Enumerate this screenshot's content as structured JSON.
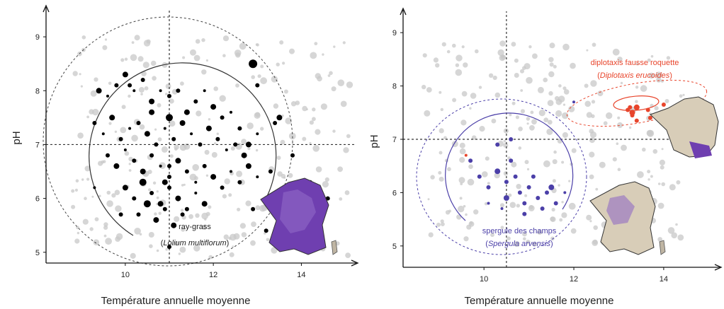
{
  "chart_data": [
    {
      "type": "scatter",
      "xlabel": "Température annuelle moyenne",
      "ylabel": "pH",
      "xlim": [
        8.2,
        15.2
      ],
      "ylim": [
        4.8,
        9.5
      ],
      "xticks": [
        "10",
        "12",
        "14"
      ],
      "yticks": [
        "5",
        "6",
        "7",
        "8",
        "9"
      ],
      "reference_lines": {
        "x": 11,
        "y": 7
      },
      "background_points": {
        "color": "#c8c8c8",
        "x_range": [
          8.8,
          15.2
        ],
        "y_range": [
          4.9,
          9.0
        ]
      },
      "series": [
        {
          "label_common": "ray-grass",
          "label_open": "(",
          "label_latin": "Lolium multiflorum",
          "label_close": ")",
          "color": "#000000",
          "points": [
            [
              9.4,
              8.0
            ],
            [
              9.6,
              7.9
            ],
            [
              9.8,
              8.1
            ],
            [
              10.0,
              8.3
            ],
            [
              10.2,
              8.0
            ],
            [
              10.4,
              8.2
            ],
            [
              10.6,
              7.8
            ],
            [
              10.8,
              8.0
            ],
            [
              11.0,
              7.9
            ],
            [
              11.2,
              8.0
            ],
            [
              11.4,
              7.6
            ],
            [
              11.6,
              7.8
            ],
            [
              11.8,
              8.0
            ],
            [
              12.0,
              7.7
            ],
            [
              12.2,
              7.5
            ],
            [
              12.4,
              7.6
            ],
            [
              12.6,
              7.3
            ],
            [
              12.8,
              7.0
            ],
            [
              13.0,
              8.1
            ],
            [
              12.9,
              8.5
            ],
            [
              9.3,
              7.4
            ],
            [
              9.5,
              7.2
            ],
            [
              9.7,
              7.5
            ],
            [
              9.9,
              7.1
            ],
            [
              10.1,
              7.3
            ],
            [
              10.3,
              7.4
            ],
            [
              10.5,
              7.2
            ],
            [
              10.7,
              7.0
            ],
            [
              10.9,
              7.3
            ],
            [
              11.1,
              7.1
            ],
            [
              11.3,
              7.4
            ],
            [
              11.5,
              7.2
            ],
            [
              11.7,
              7.0
            ],
            [
              11.9,
              7.3
            ],
            [
              12.1,
              7.1
            ],
            [
              12.3,
              6.9
            ],
            [
              12.5,
              7.0
            ],
            [
              12.7,
              6.8
            ],
            [
              13.0,
              7.2
            ],
            [
              13.4,
              7.4
            ],
            [
              9.6,
              6.8
            ],
            [
              9.8,
              6.6
            ],
            [
              10.0,
              6.9
            ],
            [
              10.2,
              6.7
            ],
            [
              10.4,
              6.5
            ],
            [
              10.6,
              6.8
            ],
            [
              10.8,
              6.6
            ],
            [
              11.0,
              6.4
            ],
            [
              11.2,
              6.7
            ],
            [
              11.4,
              6.5
            ],
            [
              11.6,
              6.3
            ],
            [
              11.8,
              6.6
            ],
            [
              12.0,
              6.4
            ],
            [
              12.2,
              6.2
            ],
            [
              12.4,
              6.5
            ],
            [
              12.6,
              6.3
            ],
            [
              12.8,
              6.6
            ],
            [
              13.0,
              6.4
            ],
            [
              13.3,
              6.5
            ],
            [
              13.6,
              6.2
            ],
            [
              10.0,
              6.2
            ],
            [
              10.2,
              6.0
            ],
            [
              10.4,
              6.3
            ],
            [
              10.6,
              6.1
            ],
            [
              10.8,
              5.9
            ],
            [
              11.0,
              6.2
            ],
            [
              11.2,
              6.0
            ],
            [
              11.4,
              5.8
            ],
            [
              11.6,
              6.1
            ],
            [
              11.8,
              5.9
            ],
            [
              10.3,
              5.7
            ],
            [
              10.5,
              5.9
            ],
            [
              10.7,
              5.6
            ],
            [
              10.9,
              5.8
            ],
            [
              11.1,
              5.5
            ],
            [
              11.3,
              5.7
            ],
            [
              10.9,
              6.3
            ],
            [
              11.0,
              6.6
            ],
            [
              11.0,
              7.5
            ],
            [
              10.6,
              7.6
            ],
            [
              13.5,
              7.5
            ],
            [
              13.8,
              6.8
            ],
            [
              14.2,
              6.3
            ],
            [
              14.6,
              6.0
            ],
            [
              11.0,
              5.1
            ],
            [
              10.1,
              8.1
            ],
            [
              9.3,
              6.2
            ],
            [
              9.9,
              5.7
            ],
            [
              12.9,
              5.8
            ],
            [
              13.2,
              5.4
            ]
          ],
          "sizes": [
            4,
            2,
            3,
            4,
            2,
            3,
            4,
            2,
            3,
            3,
            4,
            3,
            2,
            4,
            3,
            2,
            3,
            4,
            3,
            6,
            3,
            2,
            4,
            3,
            2,
            3,
            4,
            3,
            2,
            3,
            4,
            2,
            3,
            4,
            3,
            2,
            3,
            4,
            2,
            3,
            3,
            4,
            2,
            3,
            4,
            3,
            2,
            3,
            4,
            3,
            2,
            3,
            4,
            3,
            2,
            3,
            4,
            2,
            3,
            3,
            4,
            3,
            5,
            3,
            4,
            3,
            4,
            3,
            2,
            4,
            3,
            5,
            4,
            3,
            4,
            3,
            4,
            3,
            5,
            4,
            4,
            3,
            3,
            3,
            3,
            3,
            2,
            3,
            3,
            3
          ]
        }
      ]
    },
    {
      "type": "scatter",
      "xlabel": "Température annuelle moyenne",
      "ylabel": "pH",
      "xlim": [
        8.2,
        15.2
      ],
      "ylim": [
        4.6,
        9.4
      ],
      "xticks": [
        "10",
        "12",
        "14"
      ],
      "yticks": [
        "5",
        "6",
        "7",
        "8",
        "9"
      ],
      "reference_lines": {
        "x": 10.5,
        "y": 7
      },
      "background_points": {
        "color": "#c8c8c8",
        "x_range": [
          8.6,
          14.5
        ],
        "y_range": [
          5.0,
          8.8
        ]
      },
      "series": [
        {
          "label_common": "spergule des champs",
          "label_open": "(",
          "label_latin": "Spergula arvensis",
          "label_close": ")",
          "color": "#4b3fa8",
          "points": [
            [
              9.7,
              6.6
            ],
            [
              9.9,
              6.3
            ],
            [
              10.1,
              6.1
            ],
            [
              10.3,
              6.4
            ],
            [
              10.5,
              6.2
            ],
            [
              10.5,
              5.9
            ],
            [
              10.6,
              6.6
            ],
            [
              10.7,
              6.3
            ],
            [
              10.8,
              6.0
            ],
            [
              10.9,
              5.8
            ],
            [
              11.0,
              6.1
            ],
            [
              11.1,
              6.3
            ],
            [
              11.2,
              5.9
            ],
            [
              11.4,
              6.0
            ],
            [
              11.6,
              5.8
            ],
            [
              11.5,
              6.1
            ],
            [
              10.4,
              5.7
            ],
            [
              10.9,
              5.6
            ],
            [
              10.3,
              6.9
            ],
            [
              10.6,
              7.0
            ],
            [
              10.1,
              5.8
            ],
            [
              11.3,
              5.7
            ],
            [
              12.0,
              7.7
            ],
            [
              11.8,
              6.0
            ]
          ],
          "sizes": [
            3,
            3,
            3,
            4,
            3,
            4,
            3,
            3,
            3,
            3,
            3,
            3,
            3,
            3,
            3,
            4,
            2,
            3,
            3,
            3,
            2,
            3,
            2,
            2
          ]
        },
        {
          "label_common": "diplotaxis fausse roquette",
          "label_open": "(",
          "label_latin": "Diplotaxis erucoides",
          "label_close": ")",
          "color": "#e8452c",
          "points": [
            [
              13.2,
              7.55
            ],
            [
              13.3,
              7.5
            ],
            [
              13.4,
              7.6
            ],
            [
              13.3,
              7.45
            ],
            [
              13.25,
              7.6
            ],
            [
              13.4,
              7.35
            ],
            [
              13.7,
              7.4
            ],
            [
              13.65,
              7.55
            ],
            [
              14.0,
              7.65
            ],
            [
              13.95,
              7.5
            ],
            [
              9.6,
              6.7
            ]
          ],
          "sizes": [
            3,
            4,
            4,
            3,
            3,
            3,
            3,
            3,
            3,
            3,
            2
          ]
        }
      ]
    }
  ]
}
